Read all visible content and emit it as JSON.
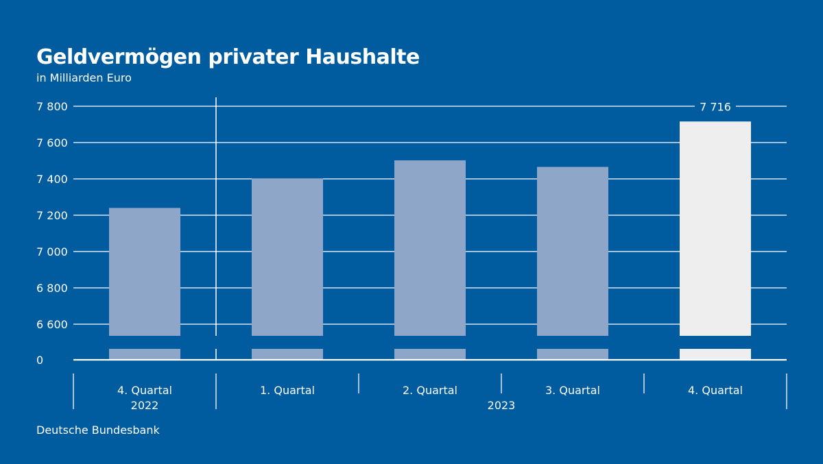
{
  "title": "Geldvermögen privater Haushalte",
  "subtitle": "in Milliarden Euro",
  "source": "Deutsche Bundesbank",
  "colors": {
    "background": "#005b9f",
    "bar": "#8ea7c8",
    "bar_highlight": "#eeeeee",
    "grid": "#ffffff",
    "text": "#ffffff"
  },
  "chart_data": {
    "type": "bar",
    "categories": [
      "4. Quartal",
      "1. Quartal",
      "2. Quartal",
      "3. Quartal",
      "4. Quartal"
    ],
    "groups": [
      {
        "label": "2022",
        "categories": [
          0
        ]
      },
      {
        "label": "2023",
        "categories": [
          1,
          2,
          3,
          4
        ]
      }
    ],
    "values": [
      7240,
      7402,
      7502,
      7466,
      7716
    ],
    "highlight_index": 4,
    "data_labels": [
      {
        "index": 4,
        "text": "7 716"
      }
    ],
    "yticks": [
      {
        "value": 7800,
        "label": "7 800"
      },
      {
        "value": 7600,
        "label": "7 600"
      },
      {
        "value": 7400,
        "label": "7 400"
      },
      {
        "value": 7200,
        "label": "7 200"
      },
      {
        "value": 7000,
        "label": "7 000"
      },
      {
        "value": 6800,
        "label": "6 800"
      },
      {
        "value": 6600,
        "label": "6 600"
      },
      {
        "value": 0,
        "label": "0"
      }
    ],
    "ylim": [
      6540,
      7800
    ],
    "axis_break": true,
    "grid": true,
    "xlabel": "",
    "ylabel": ""
  }
}
